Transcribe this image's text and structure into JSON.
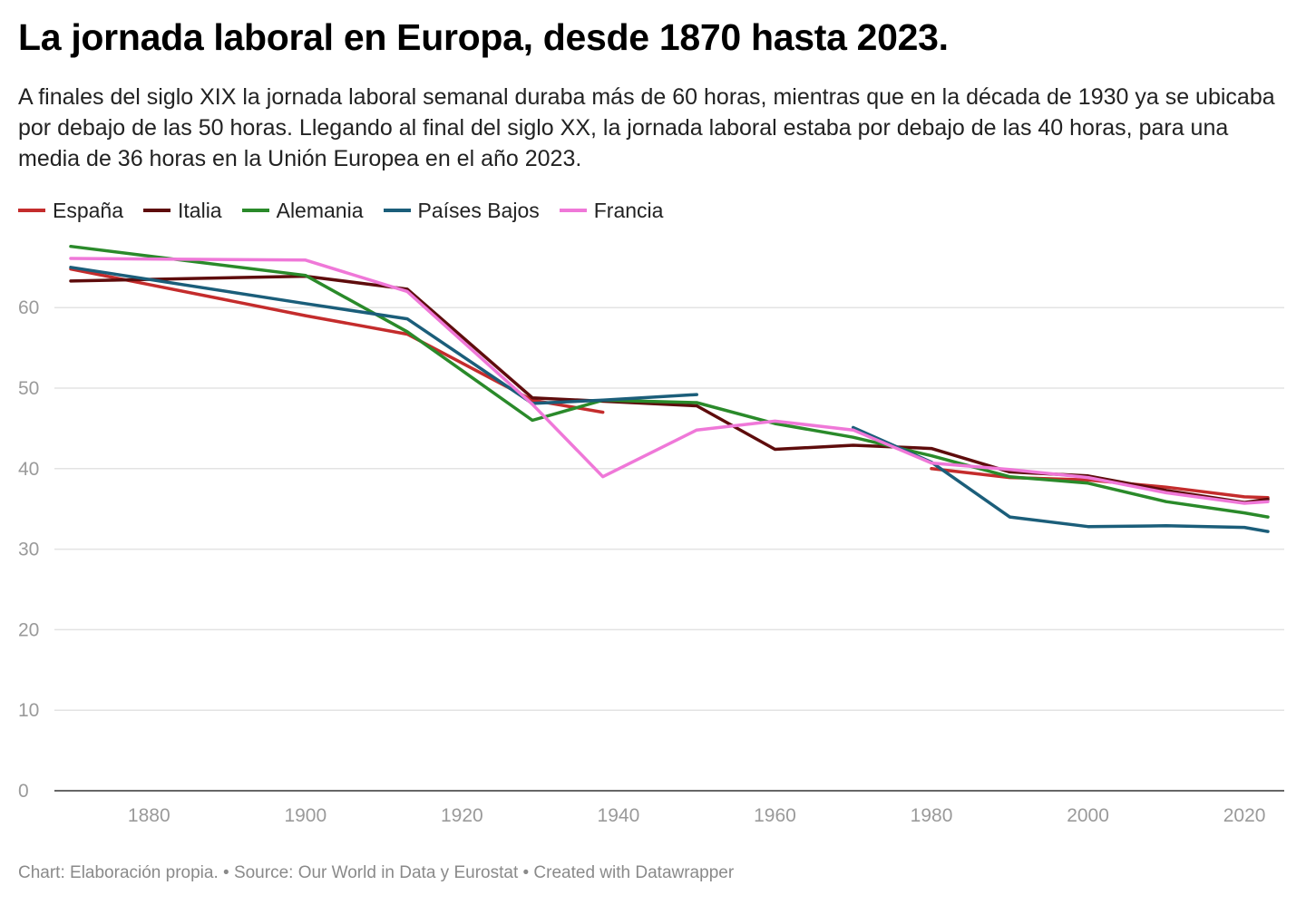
{
  "title": "La jornada laboral en Europa, desde 1870 hasta 2023.",
  "subtitle": "A finales del siglo XIX la jornada laboral semanal duraba más de 60 horas, mientras que en la década de 1930 ya se ubicaba por debajo de las 50 horas. Llegando al final del siglo XX, la jornada laboral estaba por debajo de las 40 horas, para una media de 36 horas en la Unión Europea en el año 2023.",
  "footer": "Chart: Elaboración propia. • Source: Our World in Data y Eurostat • Created with Datawrapper",
  "chart_data": {
    "type": "line",
    "title": "La jornada laboral en Europa, desde 1870 hasta 2023.",
    "xlabel": "",
    "ylabel": "",
    "xlim": [
      1870,
      2023
    ],
    "ylim": [
      0,
      70
    ],
    "xticks": [
      1880,
      1900,
      1920,
      1940,
      1960,
      1980,
      2000,
      2020
    ],
    "yticks": [
      0,
      10,
      20,
      30,
      40,
      50,
      60
    ],
    "grid": true,
    "legend_position": "top-left",
    "series": [
      {
        "name": "España",
        "color": "#c42c2c",
        "segments": [
          [
            [
              1870,
              64.8
            ],
            [
              1900,
              59.0
            ],
            [
              1913,
              56.7
            ],
            [
              1929,
              48.5
            ],
            [
              1938,
              47.0
            ]
          ],
          [
            [
              1980,
              40.0
            ],
            [
              1990,
              38.9
            ],
            [
              2000,
              38.6
            ],
            [
              2010,
              37.7
            ],
            [
              2020,
              36.5
            ],
            [
              2023,
              36.4
            ]
          ]
        ]
      },
      {
        "name": "Italia",
        "color": "#5e0c0c",
        "segments": [
          [
            [
              1870,
              63.3
            ],
            [
              1900,
              63.9
            ],
            [
              1913,
              62.3
            ],
            [
              1929,
              48.8
            ],
            [
              1950,
              47.8
            ],
            [
              1960,
              42.4
            ],
            [
              1970,
              42.9
            ],
            [
              1980,
              42.5
            ],
            [
              1990,
              39.6
            ],
            [
              2000,
              39.1
            ],
            [
              2010,
              37.3
            ],
            [
              2020,
              35.8
            ],
            [
              2023,
              36.2
            ]
          ]
        ]
      },
      {
        "name": "Alemania",
        "color": "#2a8a2a",
        "segments": [
          [
            [
              1870,
              67.6
            ],
            [
              1900,
              64.0
            ],
            [
              1913,
              57.0
            ],
            [
              1929,
              46.0
            ],
            [
              1938,
              48.5
            ],
            [
              1950,
              48.2
            ],
            [
              1960,
              45.6
            ],
            [
              1970,
              43.9
            ],
            [
              1980,
              41.6
            ],
            [
              1990,
              39.0
            ],
            [
              2000,
              38.2
            ],
            [
              2010,
              35.9
            ],
            [
              2020,
              34.5
            ],
            [
              2023,
              34.0
            ]
          ]
        ]
      },
      {
        "name": "Países Bajos",
        "color": "#1b5e7a",
        "segments": [
          [
            [
              1870,
              65.0
            ],
            [
              1900,
              60.5
            ],
            [
              1913,
              58.6
            ],
            [
              1929,
              48.1
            ],
            [
              1938,
              48.5
            ],
            [
              1950,
              49.2
            ]
          ],
          [
            [
              1970,
              45.1
            ],
            [
              1980,
              40.8
            ],
            [
              1990,
              34.0
            ],
            [
              2000,
              32.8
            ],
            [
              2010,
              32.9
            ],
            [
              2020,
              32.7
            ],
            [
              2023,
              32.2
            ]
          ]
        ]
      },
      {
        "name": "Francia",
        "color": "#ef78d8",
        "segments": [
          [
            [
              1870,
              66.1
            ],
            [
              1900,
              65.9
            ],
            [
              1913,
              62.0
            ],
            [
              1929,
              48.0
            ],
            [
              1938,
              39.0
            ],
            [
              1950,
              44.8
            ],
            [
              1960,
              45.9
            ],
            [
              1970,
              44.8
            ],
            [
              1980,
              40.7
            ],
            [
              1990,
              39.9
            ],
            [
              2000,
              38.9
            ],
            [
              2010,
              37.0
            ],
            [
              2020,
              35.7
            ],
            [
              2023,
              35.9
            ]
          ]
        ]
      }
    ]
  }
}
